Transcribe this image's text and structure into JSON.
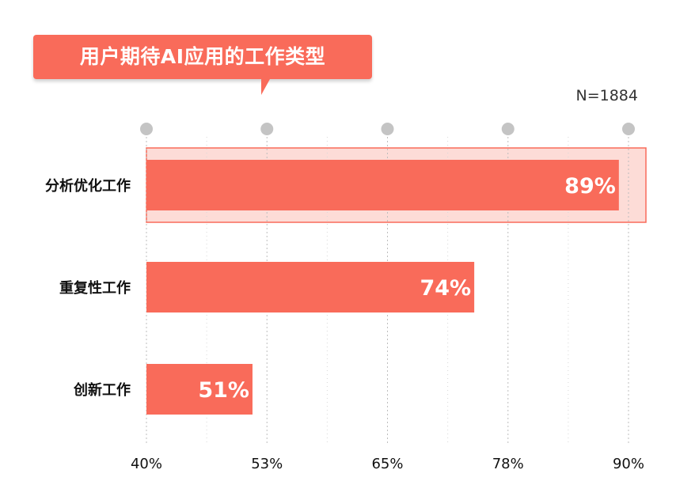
{
  "title": "用户期待AI应用的工作类型",
  "sample_size": "N=1884",
  "colors": {
    "bar": "#f96b5a",
    "highlight_fill": "#fddcd7",
    "highlight_border": "#f96b5a",
    "dot": "#c4c4c4",
    "grid": "#bdbdbd"
  },
  "chart_data": {
    "type": "bar",
    "orientation": "horizontal",
    "categories": [
      "分析优化工作",
      "重复性工作",
      "创新工作"
    ],
    "values": [
      89,
      74,
      51
    ],
    "value_labels": [
      "89%",
      "74%",
      "51%"
    ],
    "xlim": [
      40,
      90
    ],
    "tick_labels": [
      "40%",
      "53%",
      "65%",
      "78%",
      "90%"
    ],
    "grid": true,
    "highlighted_category": "分析优化工作"
  }
}
